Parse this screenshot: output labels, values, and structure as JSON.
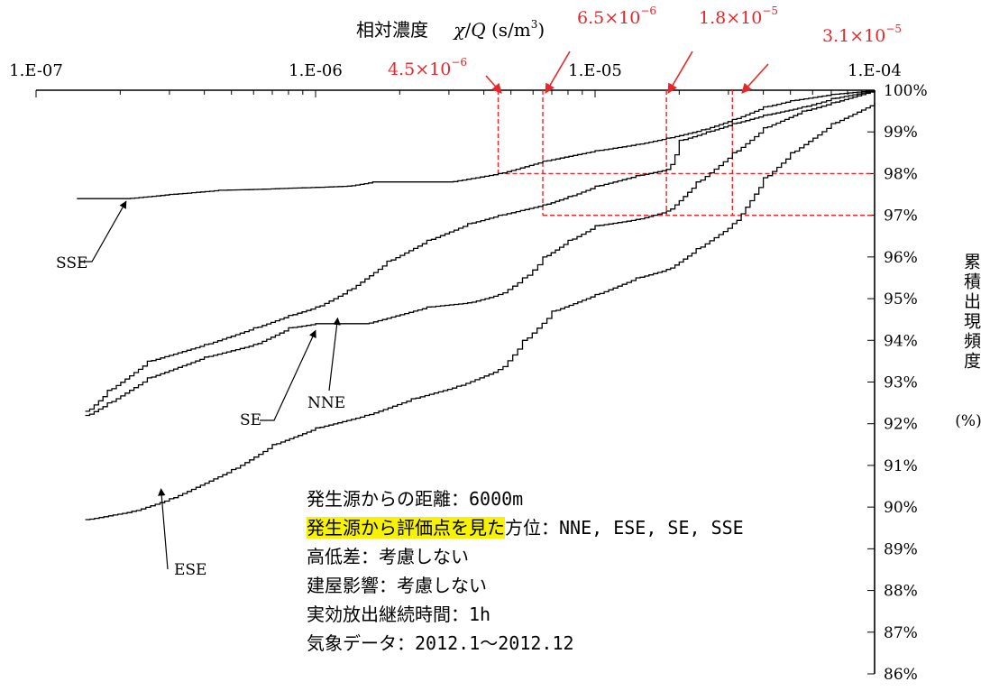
{
  "chart_data": {
    "type": "line",
    "title": "相対濃度 χ/Q (s/m³)",
    "title_jp": "相対濃度",
    "title_sym_chi": "χ",
    "title_sym_slash": "/",
    "title_sym_q": "Q",
    "title_unit": " (s/m",
    "title_unit_sup": "3",
    "title_unit_close": ")",
    "x_axis": {
      "scale": "log",
      "range": [
        1e-07,
        0.0001
      ],
      "position": "top",
      "tick_labels": [
        "1.E-07",
        "1.E-06",
        "1.E-05",
        "1.E-04"
      ]
    },
    "y_axis": {
      "position": "right",
      "range": [
        86,
        100
      ],
      "tick_labels": [
        "86%",
        "87%",
        "88%",
        "89%",
        "90%",
        "91%",
        "92%",
        "93%",
        "94%",
        "95%",
        "96%",
        "97%",
        "98%",
        "99%",
        "100%"
      ],
      "label": "累積出現頻度",
      "unit": "(%)"
    },
    "grid": false,
    "series": [
      {
        "name": "SSE",
        "x": [
          1.4e-07,
          2.1e-07,
          3e-07,
          4.5e-07,
          6e-07,
          8e-07,
          1e-06,
          1.3e-06,
          1.6e-06,
          2.2e-06,
          3e-06,
          4.5e-06,
          6.5e-06,
          1e-05,
          1.4e-05,
          1.8e-05,
          2.4e-05,
          3.1e-05,
          4e-05,
          5e-05,
          7e-05,
          0.0001
        ],
        "y": [
          97.4,
          97.4,
          97.5,
          97.6,
          97.62,
          97.65,
          97.67,
          97.7,
          97.8,
          97.8,
          97.8,
          98.0,
          98.3,
          98.55,
          98.7,
          98.85,
          99.05,
          99.3,
          99.6,
          99.75,
          99.9,
          100
        ]
      },
      {
        "name": "NNE",
        "x": [
          1.5e-07,
          1.8e-07,
          2.5e-07,
          4e-07,
          6e-07,
          8e-07,
          1e-06,
          1.3e-06,
          1.8e-06,
          2.5e-06,
          3.5e-06,
          4.5e-06,
          6.5e-06,
          8e-06,
          1e-05,
          1.4e-05,
          1.8e-05,
          2e-05,
          2.5e-05,
          3.1e-05,
          4e-05,
          5.5e-05,
          7e-05,
          0.0001
        ],
        "y": [
          92.3,
          92.8,
          93.5,
          93.9,
          94.3,
          94.6,
          94.8,
          95.2,
          95.9,
          96.4,
          96.8,
          97.0,
          97.25,
          97.45,
          97.7,
          97.95,
          98.1,
          98.8,
          99.0,
          99.2,
          99.4,
          99.6,
          99.8,
          100
        ]
      },
      {
        "name": "SE",
        "x": [
          1.5e-07,
          1.8e-07,
          2.5e-07,
          4e-07,
          6e-07,
          8e-07,
          1e-06,
          1.5e-06,
          2.5e-06,
          3.5e-06,
          4.5e-06,
          5.5e-06,
          6.5e-06,
          8e-06,
          1e-05,
          1.4e-05,
          1.8e-05,
          2.3e-05,
          3.1e-05,
          4e-05,
          5.5e-05,
          7e-05,
          0.0001
        ],
        "y": [
          92.2,
          92.5,
          93.1,
          93.6,
          93.9,
          94.3,
          94.4,
          94.4,
          94.8,
          94.9,
          95.1,
          95.5,
          96.0,
          96.4,
          96.75,
          96.9,
          97.1,
          97.8,
          98.5,
          99.1,
          99.5,
          99.7,
          100
        ]
      },
      {
        "name": "ESE",
        "x": [
          1.5e-07,
          2.2e-07,
          3e-07,
          5e-07,
          7e-07,
          1e-06,
          1.5e-06,
          2.2e-06,
          3.2e-06,
          4.5e-06,
          5.5e-06,
          7e-06,
          1e-05,
          1.4e-05,
          1.8e-05,
          2.3e-05,
          3.1e-05,
          4e-05,
          5e-05,
          7e-05,
          0.0001
        ],
        "y": [
          89.7,
          89.9,
          90.2,
          90.9,
          91.5,
          91.9,
          92.2,
          92.6,
          92.9,
          93.3,
          94.0,
          94.7,
          95.1,
          95.5,
          95.7,
          96.2,
          96.8,
          97.9,
          98.5,
          99.2,
          99.7
        ]
      }
    ],
    "series_labels": [
      {
        "name": "SSE",
        "tip_x": 2.1e-07,
        "tip_y": 97.4
      },
      {
        "name": "NNE",
        "tip_x": 1.2e-06,
        "tip_y": 94.6
      },
      {
        "name": "SE",
        "tip_x": 1e-06,
        "tip_y": 94.3
      },
      {
        "name": "ESE",
        "tip_x": 2.8e-07,
        "tip_y": 90.5
      }
    ],
    "reference_values": [
      {
        "label_base": "4.5×10",
        "label_exp": "−6",
        "x": 4.5e-06,
        "y_level": 98
      },
      {
        "label_base": "6.5×10",
        "label_exp": "−6",
        "x": 6.5e-06,
        "y_level": 97
      },
      {
        "label_base": "1.8×10",
        "label_exp": "−5",
        "x": 1.8e-05,
        "y_level": 97
      },
      {
        "label_base": "3.1×10",
        "label_exp": "−5",
        "x": 3.1e-05,
        "y_level": 97
      }
    ],
    "reference_horizontal_levels": [
      98,
      97
    ],
    "colors": {
      "series": "#000000",
      "reference": "#e8262a",
      "highlight": "#f6f200"
    }
  },
  "info": {
    "distance": "発生源からの距離：6000m",
    "direction_highlight": "発生源から評価点を見た",
    "direction_rest": "方位：NNE, ESE, SE, SSE",
    "elevation": "高低差：考慮しない",
    "building": "建屋影響：考慮しない",
    "duration": "実効放出継続時間：1h",
    "weather": "気象データ：2012.1～2012.12"
  }
}
